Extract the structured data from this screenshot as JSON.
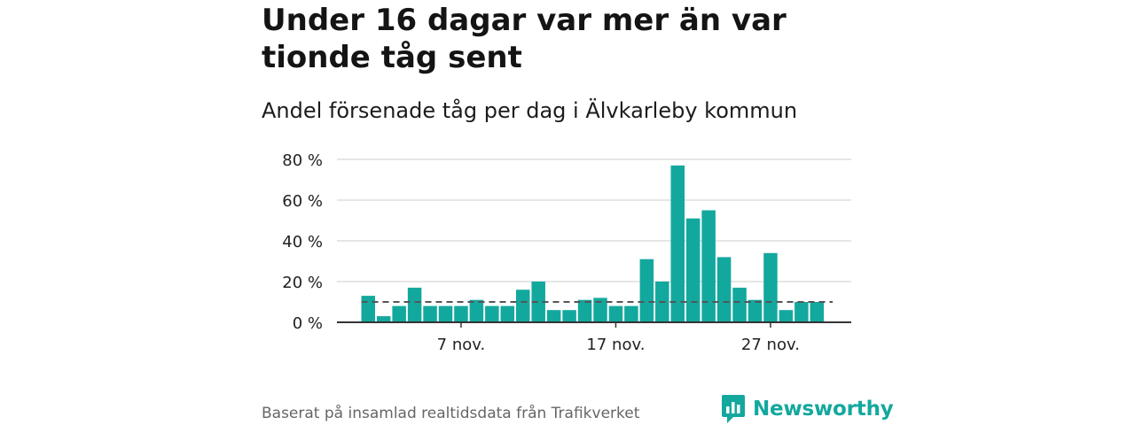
{
  "header": {
    "title": "Under 16 dagar var mer än var tionde tåg sent",
    "subtitle": "Andel försenade tåg per dag i Älvkarleby kommun"
  },
  "footer": {
    "source": "Baserat på insamlad realtidsdata från Trafikverket",
    "logo_text": "Newsworthy"
  },
  "colors": {
    "bar": "#13a89e",
    "brand": "#13a89e",
    "gridline": "#dddddd",
    "baseline": "#333333",
    "reference_line": "#555555"
  },
  "chart_data": {
    "type": "bar",
    "x": [
      "1 nov.",
      "2 nov.",
      "3 nov.",
      "4 nov.",
      "5 nov.",
      "6 nov.",
      "7 nov.",
      "8 nov.",
      "9 nov.",
      "10 nov.",
      "11 nov.",
      "12 nov.",
      "13 nov.",
      "14 nov.",
      "15 nov.",
      "16 nov.",
      "17 nov.",
      "18 nov.",
      "19 nov.",
      "20 nov.",
      "21 nov.",
      "22 nov.",
      "23 nov.",
      "24 nov.",
      "25 nov.",
      "26 nov.",
      "27 nov.",
      "28 nov.",
      "29 nov.",
      "30 nov."
    ],
    "values": [
      13,
      3,
      8,
      17,
      8,
      8,
      8,
      11,
      8,
      8,
      16,
      20,
      6,
      6,
      11,
      12,
      8,
      8,
      31,
      20,
      77,
      51,
      55,
      32,
      17,
      11,
      34,
      6,
      10,
      10
    ],
    "reference_line": {
      "value": 10,
      "style": "dashed"
    },
    "xticks": [
      "7 nov.",
      "17 nov.",
      "27 nov."
    ],
    "yticks": [
      "0 %",
      "20 %",
      "40 %",
      "60 %",
      "80 %"
    ],
    "ylim": [
      0,
      80
    ],
    "grid": true,
    "legend": "none"
  }
}
